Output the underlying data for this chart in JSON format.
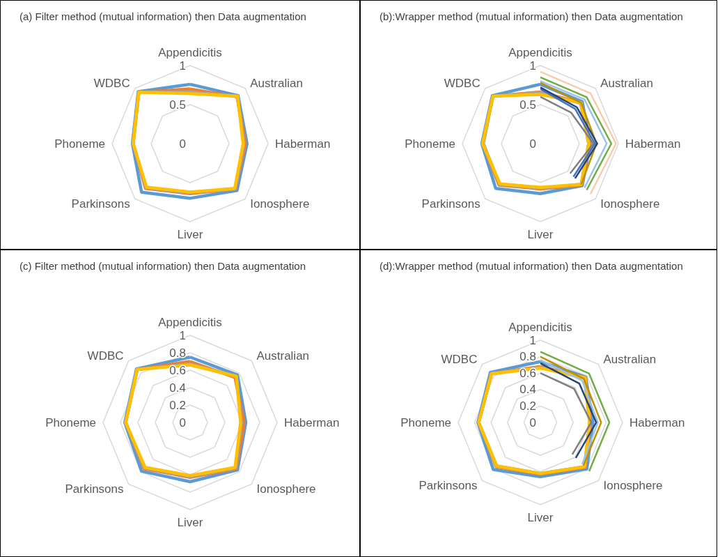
{
  "chart_data": [
    {
      "type": "radar",
      "title": "(a) Filter method (mutual information) then Data augmentation",
      "categories": [
        "Appendicitis",
        "Australian",
        "Haberman",
        "Ionosphere",
        "Liver",
        "Parkinsons",
        "Phoneme",
        "WDBC"
      ],
      "ylim": [
        0,
        1
      ],
      "yticks": [
        0,
        0.5,
        1
      ],
      "series": [
        {
          "color": "#5b9bd5",
          "values": [
            0.76,
            0.87,
            0.73,
            0.85,
            0.7,
            0.88,
            0.74,
            0.94
          ]
        },
        {
          "color": "#ed7d31",
          "values": [
            0.7,
            0.85,
            0.71,
            0.82,
            0.64,
            0.81,
            0.73,
            0.93
          ]
        },
        {
          "color": "#a5a5a5",
          "values": [
            0.66,
            0.86,
            0.69,
            0.82,
            0.63,
            0.8,
            0.73,
            0.93
          ]
        },
        {
          "color": "#ffc000",
          "values": [
            0.64,
            0.86,
            0.68,
            0.81,
            0.62,
            0.79,
            0.73,
            0.93
          ]
        }
      ]
    },
    {
      "type": "radar",
      "title": "(b):Wrapper method (mutual information) then Data augmentation",
      "categories": [
        "Appendicitis",
        "Australian",
        "Haberman",
        "Ionosphere",
        "Liver",
        "Parkinsons",
        "Phoneme",
        "WDBC"
      ],
      "ylim": [
        0,
        1
      ],
      "yticks": [
        0,
        0.5,
        1
      ],
      "series": [
        {
          "color": "#f8cbad",
          "values": [
            0.92,
            0.91,
            0.97,
            0.91,
            null,
            null,
            null,
            null
          ]
        },
        {
          "color": "#70ad47",
          "values": [
            0.85,
            0.84,
            0.91,
            0.84,
            null,
            null,
            null,
            null
          ]
        },
        {
          "color": "#9dc3e6",
          "values": [
            0.8,
            0.8,
            0.85,
            0.8,
            null,
            null,
            null,
            null
          ]
        },
        {
          "color": "#bf9000",
          "values": [
            0.78,
            0.74,
            0.72,
            0.74,
            null,
            null,
            null,
            null
          ]
        },
        {
          "color": "#4472c4",
          "values": [
            0.7,
            0.63,
            0.7,
            0.6,
            null,
            null,
            null,
            null
          ]
        },
        {
          "color": "#264478",
          "values": [
            0.72,
            0.66,
            0.73,
            0.63,
            null,
            null,
            null,
            null
          ]
        },
        {
          "color": "#7f7f7f",
          "values": [
            0.6,
            0.56,
            0.68,
            0.54,
            null,
            null,
            null,
            null
          ]
        },
        {
          "color": "#5b9bd5",
          "values": [
            0.76,
            0.76,
            0.64,
            0.76,
            0.64,
            0.81,
            0.75,
            0.87
          ]
        },
        {
          "color": "#ed7d31",
          "values": [
            0.66,
            0.74,
            0.63,
            0.75,
            0.58,
            0.75,
            0.74,
            0.86
          ]
        },
        {
          "color": "#a5a5a5",
          "values": [
            0.65,
            0.73,
            0.62,
            0.74,
            0.57,
            0.74,
            0.73,
            0.86
          ]
        },
        {
          "color": "#ffc000",
          "values": [
            0.63,
            0.74,
            0.62,
            0.74,
            0.56,
            0.73,
            0.74,
            0.86
          ]
        }
      ]
    },
    {
      "type": "radar",
      "title": "(c) Filter method (mutual information) then Data augmentation",
      "categories": [
        "Appendicitis",
        "Australian",
        "Haberman",
        "Ionosphere",
        "Liver",
        "Parkinsons",
        "Phoneme",
        "WDBC"
      ],
      "ylim": [
        0,
        1
      ],
      "yticks": [
        0,
        0.2,
        0.4,
        0.6,
        0.8,
        1
      ],
      "series": [
        {
          "color": "#5b9bd5",
          "values": [
            0.75,
            0.77,
            0.64,
            0.77,
            0.68,
            0.79,
            0.75,
            0.87
          ]
        },
        {
          "color": "#ed7d31",
          "values": [
            0.7,
            0.73,
            0.62,
            0.75,
            0.63,
            0.75,
            0.74,
            0.86
          ]
        },
        {
          "color": "#a5a5a5",
          "values": [
            0.67,
            0.75,
            0.59,
            0.74,
            0.62,
            0.74,
            0.74,
            0.86
          ]
        },
        {
          "color": "#ffc000",
          "values": [
            0.66,
            0.75,
            0.58,
            0.73,
            0.61,
            0.73,
            0.74,
            0.86
          ]
        }
      ]
    },
    {
      "type": "radar",
      "title": "(d):Wrapper method (mutual information) then Data augmentation",
      "categories": [
        "Appendicitis",
        "Australian",
        "Haberman",
        "Ionosphere",
        "Liver",
        "Parkinsons",
        "Phoneme",
        "WDBC"
      ],
      "ylim": [
        0,
        1
      ],
      "yticks": [
        0,
        0.2,
        0.4,
        0.6,
        0.8,
        1
      ],
      "series": [
        {
          "color": "#70ad47",
          "values": [
            0.86,
            0.84,
            0.84,
            0.84,
            null,
            null,
            null,
            null
          ]
        },
        {
          "color": "#bf9000",
          "values": [
            0.8,
            0.75,
            0.74,
            0.74,
            null,
            null,
            null,
            null
          ]
        },
        {
          "color": "#9dc3e6",
          "values": [
            0.76,
            0.72,
            0.7,
            0.72,
            null,
            null,
            null,
            null
          ]
        },
        {
          "color": "#264478",
          "values": [
            0.72,
            0.67,
            0.68,
            0.61,
            null,
            null,
            null,
            null
          ]
        },
        {
          "color": "#7f7f7f",
          "values": [
            0.6,
            0.58,
            0.62,
            0.55,
            null,
            null,
            null,
            null
          ]
        },
        {
          "color": "#5b9bd5",
          "values": [
            0.74,
            0.78,
            0.64,
            0.8,
            0.66,
            0.81,
            0.76,
            0.86
          ]
        },
        {
          "color": "#ed7d31",
          "values": [
            0.68,
            0.77,
            0.61,
            0.77,
            0.63,
            0.76,
            0.75,
            0.84
          ]
        },
        {
          "color": "#a5a5a5",
          "values": [
            0.67,
            0.76,
            0.6,
            0.76,
            0.62,
            0.75,
            0.75,
            0.84
          ]
        },
        {
          "color": "#ffc000",
          "values": [
            0.66,
            0.77,
            0.6,
            0.76,
            0.62,
            0.75,
            0.75,
            0.84
          ]
        }
      ]
    }
  ]
}
